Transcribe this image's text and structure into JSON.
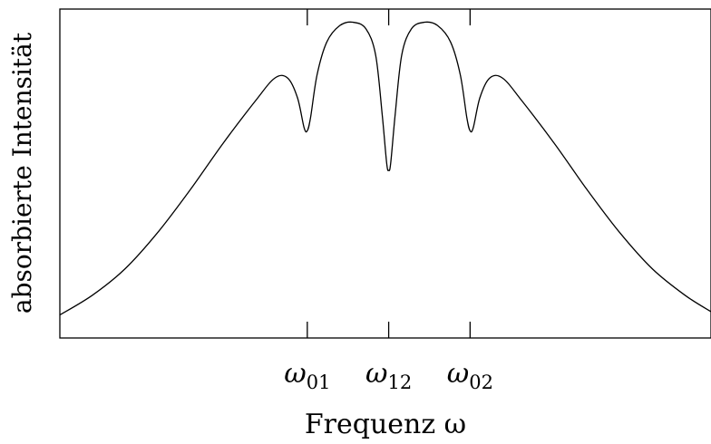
{
  "chart_data": {
    "type": "line",
    "xlabel": "Frequenz ω",
    "ylabel": "absorbierte Intensität",
    "xlim": [
      0,
      100
    ],
    "ylim": [
      0,
      100
    ],
    "grid": false,
    "legend": "none",
    "ticks": [
      {
        "base": "ω",
        "sub": "01",
        "x": 38
      },
      {
        "base": "ω",
        "sub": "12",
        "x": 50.5
      },
      {
        "base": "ω",
        "sub": "02",
        "x": 63
      }
    ],
    "series": [
      {
        "x": [
          0,
          5,
          10,
          15,
          20,
          25,
          30,
          33,
          35,
          36.5,
          37.5,
          38,
          38.5,
          39.5,
          41,
          43,
          45,
          47,
          48.5,
          49.5,
          50.2,
          50.5,
          50.8,
          51.5,
          52.5,
          54,
          56,
          58,
          60,
          61.5,
          62.5,
          63,
          63.5,
          64.5,
          66,
          68,
          71,
          76,
          81,
          86,
          91,
          96,
          100
        ],
        "y": [
          7,
          13,
          21,
          32,
          45,
          59,
          72,
          79,
          79,
          73,
          64,
          63,
          67,
          80,
          90,
          95,
          96,
          94,
          86,
          68,
          53,
          51,
          53,
          68,
          86,
          94,
          96,
          95,
          90,
          80,
          67,
          63,
          64,
          73,
          79,
          79,
          72,
          59,
          45,
          32,
          21,
          13,
          8
        ]
      }
    ],
    "colors": {
      "line": "#000000",
      "axis": "#000000"
    }
  }
}
